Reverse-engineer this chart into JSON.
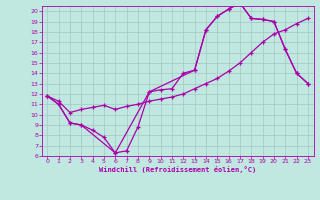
{
  "xlabel": "Windchill (Refroidissement éolien,°C)",
  "xlim": [
    -0.5,
    23.5
  ],
  "ylim": [
    6,
    20.5
  ],
  "xticks": [
    0,
    1,
    2,
    3,
    4,
    5,
    6,
    7,
    8,
    9,
    10,
    11,
    12,
    13,
    14,
    15,
    16,
    17,
    18,
    19,
    20,
    21,
    22,
    23
  ],
  "yticks": [
    6,
    7,
    8,
    9,
    10,
    11,
    12,
    13,
    14,
    15,
    16,
    17,
    18,
    19,
    20
  ],
  "bg_color": "#c0e8e0",
  "line_color": "#aa00aa",
  "grid_color": "#a0c8c0",
  "line1_x": [
    0,
    1,
    2,
    3,
    4,
    5,
    6,
    7,
    8,
    9,
    10,
    11,
    12,
    13,
    14,
    15,
    16,
    17,
    18,
    19,
    20,
    21,
    22,
    23
  ],
  "line1_y": [
    11.8,
    11.0,
    9.2,
    9.0,
    8.5,
    7.8,
    6.3,
    6.5,
    8.8,
    12.2,
    12.4,
    12.5,
    14.0,
    14.3,
    18.2,
    19.5,
    20.2,
    20.8,
    19.3,
    19.2,
    19.0,
    16.3,
    14.0,
    13.0
  ],
  "line2_x": [
    0,
    1,
    2,
    3,
    4,
    5,
    6,
    7,
    8,
    9,
    10,
    11,
    12,
    13,
    14,
    15,
    16,
    17,
    18,
    19,
    20,
    21,
    22,
    23
  ],
  "line2_y": [
    11.8,
    11.3,
    10.2,
    10.5,
    10.7,
    10.9,
    10.5,
    10.8,
    11.0,
    11.3,
    11.5,
    11.7,
    12.0,
    12.5,
    13.0,
    13.5,
    14.2,
    15.0,
    16.0,
    17.0,
    17.8,
    18.2,
    18.8,
    19.3
  ],
  "line3_x": [
    0,
    1,
    2,
    3,
    6,
    9,
    13,
    14,
    15,
    16,
    17,
    18,
    19,
    20,
    21,
    22,
    23
  ],
  "line3_y": [
    11.8,
    11.0,
    9.2,
    9.0,
    6.3,
    12.2,
    14.3,
    18.2,
    19.5,
    20.2,
    20.8,
    19.3,
    19.2,
    19.0,
    16.3,
    14.0,
    13.0
  ]
}
